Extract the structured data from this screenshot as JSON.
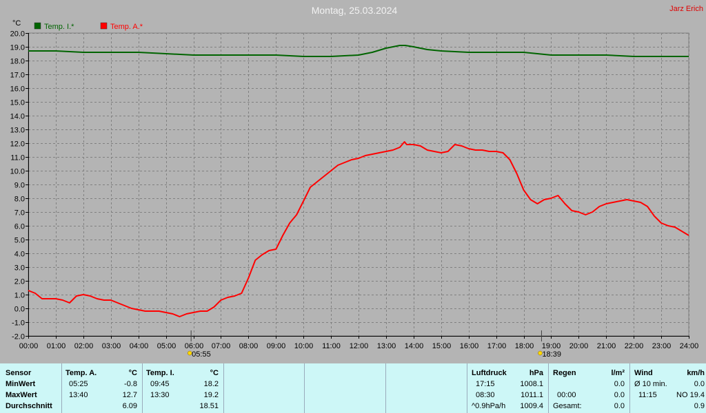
{
  "header": {
    "title": "Montag, 25.03.2024",
    "author": "Jarz Erich"
  },
  "chart_data": {
    "type": "line",
    "ylabel": "°C",
    "ylim": [
      -2,
      20
    ],
    "y_ticks": [
      "20.0",
      "19.0",
      "18.0",
      "17.0",
      "16.0",
      "15.0",
      "14.0",
      "13.0",
      "12.0",
      "11.0",
      "10.0",
      "9.0",
      "8.0",
      "7.0",
      "6.0",
      "5.0",
      "4.0",
      "3.0",
      "2.0",
      "1.0",
      "0.0",
      "-1.0",
      "-2.0"
    ],
    "x_ticks": [
      "00:00",
      "01:00",
      "02:00",
      "03:00",
      "04:00",
      "05:00",
      "06:00",
      "07:00",
      "08:00",
      "09:00",
      "10:00",
      "11:00",
      "12:00",
      "13:00",
      "14:00",
      "15:00",
      "16:00",
      "17:00",
      "18:00",
      "19:00",
      "20:00",
      "21:00",
      "22:00",
      "23:00",
      "24:00"
    ],
    "xlim_hours": [
      0,
      24
    ],
    "grid": true,
    "legend_position": "top-left",
    "sunrise": "05:55",
    "sunset": "18:39",
    "series": [
      {
        "name": "Temp. I.*",
        "color": "#006400",
        "x": [
          0,
          1,
          2,
          3,
          4,
          5,
          6,
          7,
          8,
          9,
          10,
          11,
          12,
          12.5,
          13,
          13.5,
          13.7,
          14,
          14.5,
          15,
          16,
          17,
          18,
          19,
          20,
          21,
          22,
          23,
          24
        ],
        "y": [
          18.7,
          18.7,
          18.6,
          18.6,
          18.6,
          18.5,
          18.4,
          18.4,
          18.4,
          18.4,
          18.3,
          18.3,
          18.4,
          18.6,
          18.9,
          19.1,
          19.1,
          19.0,
          18.8,
          18.7,
          18.6,
          18.6,
          18.6,
          18.4,
          18.4,
          18.4,
          18.3,
          18.3,
          18.3
        ]
      },
      {
        "name": "Temp. A.*",
        "color": "#ff0000",
        "x": [
          0,
          0.25,
          0.5,
          0.75,
          1,
          1.25,
          1.5,
          1.75,
          2,
          2.25,
          2.5,
          2.75,
          3,
          3.25,
          3.5,
          3.75,
          4,
          4.25,
          4.5,
          4.75,
          5,
          5.25,
          5.5,
          5.75,
          6,
          6.25,
          6.5,
          6.75,
          7,
          7.25,
          7.5,
          7.75,
          8,
          8.25,
          8.5,
          8.75,
          9,
          9.25,
          9.5,
          9.75,
          10,
          10.25,
          10.5,
          10.75,
          11,
          11.25,
          11.5,
          11.75,
          12,
          12.25,
          12.5,
          12.75,
          13,
          13.25,
          13.5,
          13.67,
          13.75,
          14,
          14.25,
          14.5,
          14.75,
          15,
          15.25,
          15.5,
          15.75,
          16,
          16.25,
          16.5,
          16.75,
          17,
          17.25,
          17.5,
          17.75,
          18,
          18.25,
          18.5,
          18.75,
          19,
          19.25,
          19.5,
          19.75,
          20,
          20.25,
          20.5,
          20.75,
          21,
          21.25,
          21.5,
          21.75,
          22,
          22.25,
          22.5,
          22.75,
          23,
          23.25,
          23.5,
          23.75,
          24
        ],
        "y": [
          1.3,
          1.1,
          0.7,
          0.7,
          0.7,
          0.6,
          0.4,
          0.9,
          1.0,
          0.9,
          0.7,
          0.6,
          0.6,
          0.4,
          0.2,
          0.0,
          -0.1,
          -0.2,
          -0.2,
          -0.2,
          -0.3,
          -0.4,
          -0.6,
          -0.4,
          -0.3,
          -0.2,
          -0.2,
          0.1,
          0.6,
          0.8,
          0.9,
          1.1,
          2.2,
          3.5,
          3.9,
          4.2,
          4.3,
          5.3,
          6.2,
          6.8,
          7.8,
          8.8,
          9.2,
          9.6,
          10.0,
          10.4,
          10.6,
          10.8,
          10.9,
          11.1,
          11.2,
          11.3,
          11.4,
          11.5,
          11.7,
          12.1,
          11.9,
          11.9,
          11.8,
          11.5,
          11.4,
          11.3,
          11.4,
          11.9,
          11.8,
          11.6,
          11.5,
          11.5,
          11.4,
          11.4,
          11.3,
          10.8,
          9.8,
          8.6,
          7.9,
          7.6,
          7.9,
          8.0,
          8.2,
          7.6,
          7.1,
          7.0,
          6.8,
          7.0,
          7.4,
          7.6,
          7.7,
          7.8,
          7.9,
          7.8,
          7.7,
          7.4,
          6.7,
          6.2,
          6.0,
          5.9,
          5.6,
          5.3
        ]
      }
    ]
  },
  "stats": {
    "sensor": {
      "header": "Sensor",
      "rows": [
        "MinWert",
        "MaxWert",
        "Durchschnitt"
      ]
    },
    "temp_a": {
      "header": "Temp. A.",
      "unit": "°C",
      "min_time": "05:25",
      "min": "-0.8",
      "max_time": "13:40",
      "max": "12.7",
      "avg": "6.09"
    },
    "temp_i": {
      "header": "Temp. I.",
      "unit": "°C",
      "min_time": "09:45",
      "min": "18.2",
      "max_time": "13:30",
      "max": "19.2",
      "avg": "18.51"
    },
    "pressure": {
      "header": "Luftdruck",
      "unit": "hPa",
      "r1_label": "17:15",
      "r1_val": "1008.1",
      "r2_label": "08:30",
      "r2_val": "1011.1",
      "r3_label": "^0.9hPa/h",
      "r3_val": "1009.4"
    },
    "rain": {
      "header": "Regen",
      "unit": "l/m²",
      "r1_val": "0.0",
      "r2_label": "00:00",
      "r2_val": "0.0",
      "r3_label": "Gesamt:",
      "r3_val": "0.0"
    },
    "wind": {
      "header": "Wind",
      "unit": "km/h",
      "r1_label": "Ø 10 min.",
      "r1_val": "0.0",
      "r2_label": "11:15",
      "r2_val": "NO 19.4",
      "r3_val": "0.9"
    }
  }
}
